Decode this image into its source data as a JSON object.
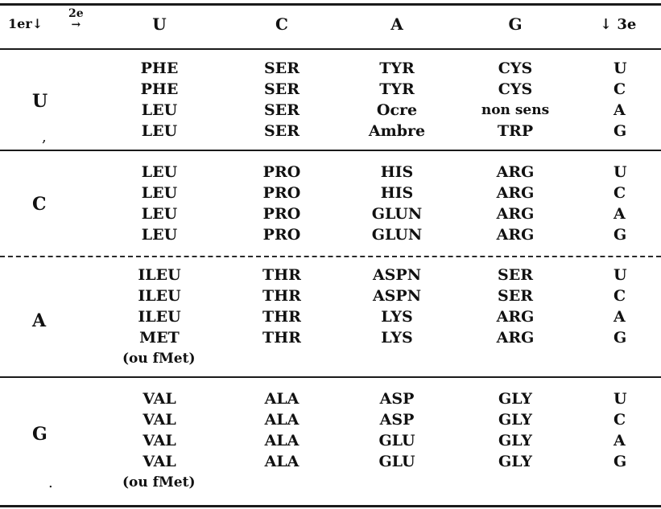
{
  "header": {
    "first_label": "1er↓",
    "second_label": "2e",
    "second_arrow": "→",
    "cols": [
      "U",
      "C",
      "A",
      "G"
    ],
    "third_label": "↓ 3e"
  },
  "groups": [
    {
      "base": "U",
      "rows": [
        {
          "cells": [
            "PHE",
            "SER",
            "TYR",
            "CYS"
          ],
          "third": "U"
        },
        {
          "cells": [
            "PHE",
            "SER",
            "TYR",
            "CYS"
          ],
          "third": "C"
        },
        {
          "cells": [
            "LEU",
            "SER",
            "Ocre",
            "non sens"
          ],
          "third": "A"
        },
        {
          "cells": [
            "LEU",
            "SER",
            "Ambre",
            "TRP"
          ],
          "third": "G"
        }
      ]
    },
    {
      "base": "C",
      "rows": [
        {
          "cells": [
            "LEU",
            "PRO",
            "HIS",
            "ARG"
          ],
          "third": "U"
        },
        {
          "cells": [
            "LEU",
            "PRO",
            "HIS",
            "ARG"
          ],
          "third": "C"
        },
        {
          "cells": [
            "LEU",
            "PRO",
            "GLUN",
            "ARG"
          ],
          "third": "A"
        },
        {
          "cells": [
            "LEU",
            "PRO",
            "GLUN",
            "ARG"
          ],
          "third": "G"
        }
      ]
    },
    {
      "base": "A",
      "rows": [
        {
          "cells": [
            "ILEU",
            "THR",
            "ASPN",
            "SER"
          ],
          "third": "U"
        },
        {
          "cells": [
            "ILEU",
            "THR",
            "ASPN",
            "SER"
          ],
          "third": "C"
        },
        {
          "cells": [
            "ILEU",
            "THR",
            "LYS",
            "ARG"
          ],
          "third": "A"
        },
        {
          "cells": [
            "MET",
            "THR",
            "LYS",
            "ARG"
          ],
          "third": "G"
        }
      ],
      "note": "(ou fMet)"
    },
    {
      "base": "G",
      "rows": [
        {
          "cells": [
            "VAL",
            "ALA",
            "ASP",
            "GLY"
          ],
          "third": "U"
        },
        {
          "cells": [
            "VAL",
            "ALA",
            "ASP",
            "GLY"
          ],
          "third": "C"
        },
        {
          "cells": [
            "VAL",
            "ALA",
            "GLU",
            "GLY"
          ],
          "third": "A"
        },
        {
          "cells": [
            "VAL",
            "ALA",
            "GLU",
            "GLY"
          ],
          "third": "G"
        }
      ],
      "note": "(ou fMet)"
    }
  ]
}
